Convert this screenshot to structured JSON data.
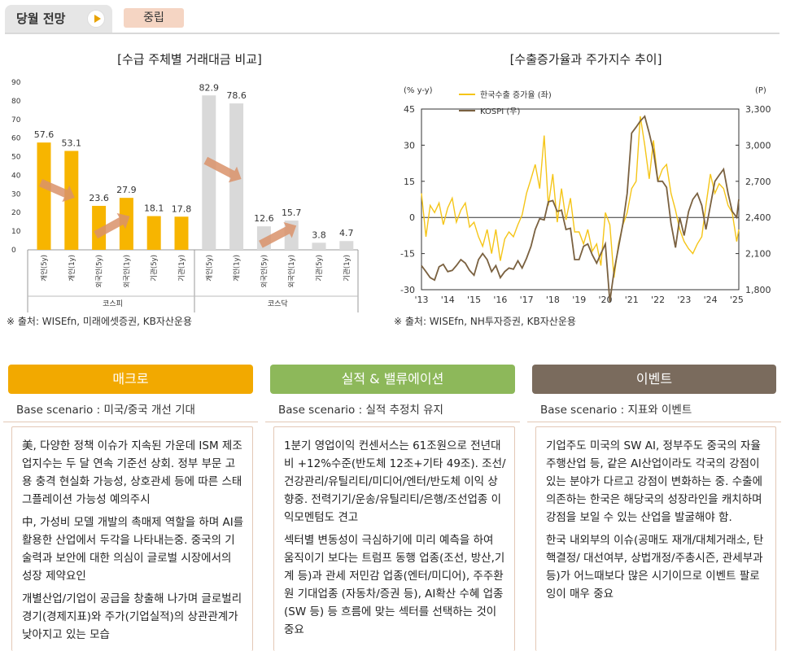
{
  "header": {
    "title": "당월 전망",
    "badge": "중립"
  },
  "left_chart": {
    "title": "[수급 주체별 거래대금 비교]",
    "source": "※ 출처: WISEfn, 미래에셋증권, KB자산운용"
  },
  "right_chart": {
    "title": "[수출증가율과 주가지수 추이]",
    "source": "※ 출처: WISEfn, NH투자증권, KB자산운용"
  },
  "chart_data": [
    {
      "type": "bar",
      "title": "[수급 주체별 거래대금 비교]",
      "groups": [
        "코스피",
        "코스닥"
      ],
      "categories": [
        "개인(5y)",
        "개인(1y)",
        "외국인(5y)",
        "외국인(1y)",
        "기관(5y)",
        "기관(1y)",
        "개인(5y)",
        "개인(1y)",
        "외국인(5y)",
        "외국인(1y)",
        "기관(5y)",
        "기관(1y)"
      ],
      "values": [
        57.6,
        53.1,
        23.6,
        27.9,
        18.1,
        17.8,
        82.9,
        78.6,
        12.6,
        15.7,
        3.8,
        4.7
      ],
      "group_of": [
        0,
        0,
        0,
        0,
        0,
        0,
        1,
        1,
        1,
        1,
        1,
        1
      ],
      "ylim": [
        0,
        90
      ],
      "yticks": [
        0,
        10,
        20,
        30,
        40,
        50,
        60,
        70,
        80,
        90
      ],
      "colors": {
        "kospi": "#f7b500",
        "kosdaq": "#d9d9d9",
        "arrow": "#d9926a"
      },
      "grid": false
    },
    {
      "type": "line",
      "title": "[수출증가율과 주가지수 추이]",
      "ylabel_left": "(% y-y)",
      "ylabel_right": "(P)",
      "xticks": [
        "'13",
        "'14",
        "'15",
        "'16",
        "'17",
        "'18",
        "'19",
        "'20",
        "'21",
        "'22",
        "'23",
        "'24",
        "'25"
      ],
      "yticks_left": [
        -30,
        -15,
        0,
        15,
        30,
        45
      ],
      "yticks_right": [
        "1,800",
        "2,100",
        "2,400",
        "2,700",
        "3,000",
        "3,300"
      ],
      "ylim_left": [
        -30,
        45
      ],
      "ylim_right": [
        1800,
        3300
      ],
      "legend_placement": "top-left",
      "series": [
        {
          "name": "한국수출 증가율 (좌)",
          "axis": "left",
          "color": "#f5c518",
          "x": [
            2013.0,
            2013.17,
            2013.33,
            2013.5,
            2013.67,
            2013.83,
            2014.0,
            2014.17,
            2014.33,
            2014.5,
            2014.67,
            2014.83,
            2015.0,
            2015.17,
            2015.33,
            2015.5,
            2015.67,
            2015.83,
            2016.0,
            2016.17,
            2016.33,
            2016.5,
            2016.67,
            2016.83,
            2017.0,
            2017.17,
            2017.33,
            2017.5,
            2017.67,
            2017.83,
            2018.0,
            2018.17,
            2018.33,
            2018.5,
            2018.67,
            2018.83,
            2019.0,
            2019.17,
            2019.33,
            2019.5,
            2019.67,
            2019.83,
            2020.0,
            2020.17,
            2020.33,
            2020.5,
            2020.67,
            2020.83,
            2021.0,
            2021.17,
            2021.33,
            2021.5,
            2021.67,
            2021.83,
            2022.0,
            2022.17,
            2022.33,
            2022.5,
            2022.67,
            2022.83,
            2023.0,
            2023.17,
            2023.33,
            2023.5,
            2023.67,
            2023.83,
            2024.0,
            2024.17,
            2024.33,
            2024.5,
            2024.67,
            2024.83,
            2025.0,
            2025.08
          ],
          "values": [
            10,
            -8,
            5,
            2,
            6,
            -3,
            4,
            8,
            -2,
            3,
            6,
            -4,
            -2,
            -8,
            -12,
            -5,
            -15,
            -5,
            -18,
            -9,
            -6,
            -8,
            -3,
            1,
            10,
            16,
            22,
            12,
            34,
            5,
            18,
            -2,
            12,
            -1,
            8,
            -6,
            -6,
            -11,
            -5,
            -14,
            -11,
            -20,
            2,
            -3,
            -25,
            -11,
            -3,
            2,
            12,
            15,
            42,
            30,
            16,
            32,
            15,
            20,
            22,
            10,
            3,
            -5,
            -10,
            -13,
            -15,
            -11,
            -8,
            5,
            18,
            10,
            14,
            12,
            5,
            2,
            -10,
            -5
          ]
        },
        {
          "name": "KOSPI (우)",
          "axis": "right",
          "color": "#7a6140",
          "x": [
            2013.0,
            2013.17,
            2013.33,
            2013.5,
            2013.67,
            2013.83,
            2014.0,
            2014.17,
            2014.33,
            2014.5,
            2014.67,
            2014.83,
            2015.0,
            2015.17,
            2015.33,
            2015.5,
            2015.67,
            2015.83,
            2016.0,
            2016.17,
            2016.33,
            2016.5,
            2016.67,
            2016.83,
            2017.0,
            2017.17,
            2017.33,
            2017.5,
            2017.67,
            2017.83,
            2018.0,
            2018.17,
            2018.33,
            2018.5,
            2018.67,
            2018.83,
            2019.0,
            2019.17,
            2019.33,
            2019.5,
            2019.67,
            2019.83,
            2020.0,
            2020.17,
            2020.33,
            2020.5,
            2020.67,
            2020.83,
            2021.0,
            2021.17,
            2021.33,
            2021.5,
            2021.67,
            2021.83,
            2022.0,
            2022.17,
            2022.33,
            2022.5,
            2022.67,
            2022.83,
            2023.0,
            2023.17,
            2023.33,
            2023.5,
            2023.67,
            2023.83,
            2024.0,
            2024.17,
            2024.33,
            2024.5,
            2024.67,
            2024.83,
            2025.0,
            2025.08
          ],
          "values": [
            2000,
            1950,
            1900,
            1880,
            1990,
            2010,
            1950,
            1960,
            2000,
            2050,
            2020,
            1960,
            1920,
            2050,
            2100,
            2050,
            1950,
            2000,
            1900,
            1950,
            1980,
            1970,
            2040,
            1980,
            2060,
            2160,
            2300,
            2390,
            2380,
            2530,
            2540,
            2450,
            2460,
            2300,
            2310,
            2050,
            2050,
            2160,
            2180,
            2090,
            2020,
            2100,
            2180,
            1700,
            1950,
            2150,
            2350,
            2600,
            3100,
            3150,
            3200,
            3240,
            3100,
            2950,
            2700,
            2700,
            2650,
            2350,
            2150,
            2400,
            2250,
            2450,
            2550,
            2600,
            2500,
            2300,
            2500,
            2700,
            2750,
            2800,
            2600,
            2450,
            2400,
            2550
          ]
        }
      ]
    }
  ],
  "boxes": [
    {
      "head": "매크로",
      "scenario": "Base scenario : 미국/중국 개선 기대",
      "paragraphs": [
        "美, 다양한 정책 이슈가 지속된 가운데 ISM 제조업지수는 두 달 연속 기준선 상회. 정부 부문 고용 충격 현실화 가능성, 상호관세 등에 따른 스태그플레이션 가능성 예의주시",
        "中, 가성비 모델 개발의 촉매제 역할을 하며 AI를 활용한 산업에서 두각을 나타내는중. 중국의 기술력과 보안에 대한 의심이 글로벌 시장에서의 성장 제약요인",
        "개별산업/기업이 공급을 창출해 나가며 글로벌리 경기(경제지표)와 주가(기업실적)의 상관관계가 낮아지고 있는 모습"
      ]
    },
    {
      "head": "실적 & 밸류에이션",
      "scenario": "Base scenario : 실적 추정치 유지",
      "paragraphs": [
        "1분기 영업이익 컨센서스는 61조원으로 전년대비 +12%수준(반도체 12조+기타 49조). 조선/건강관리/유틸리티/미디어/엔터/반도체 이익 상향중. 전력기기/운송/유틸리티/은행/조선업종 이익모멘텀도 견고",
        "섹터별 변동성이 극심하기에 미리 예측을 하여 움직이기 보다는  트럼프 동행 업종(조선, 방산,기계 등)과 관세 저민감 업종(엔터/미디어), 주주환원 기대업종 (자동차/증권 등), AI확산 수혜 업종 (SW 등) 등 흐름에 맞는 섹터를 선택하는 것이 중요"
      ]
    },
    {
      "head": "이벤트",
      "scenario": "Base scenario : 지표와 이벤트",
      "paragraphs": [
        "기업주도 미국의 SW AI, 정부주도 중국의 자율주행산업 등, 같은 AI산업이라도 각국의 강점이 있는 분야가 다르고 강점이 변화하는 중. 수출에 의존하는 한국은 해당국의 성장라인을 캐치하며 강점을 보일 수 있는 산업을 발굴해야 함.",
        "한국 내외부의 이슈(공매도 재개/대체거래소, 탄핵결정/ 대선여부, 상법개정/주총시즌,  관세부과 등)가 어느때보다 많은 시기이므로 이벤트 팔로잉이 매우 중요"
      ]
    }
  ],
  "colors": {
    "macro": "#f2a900",
    "earnings": "#8db85a",
    "event": "#7a6b5d"
  }
}
